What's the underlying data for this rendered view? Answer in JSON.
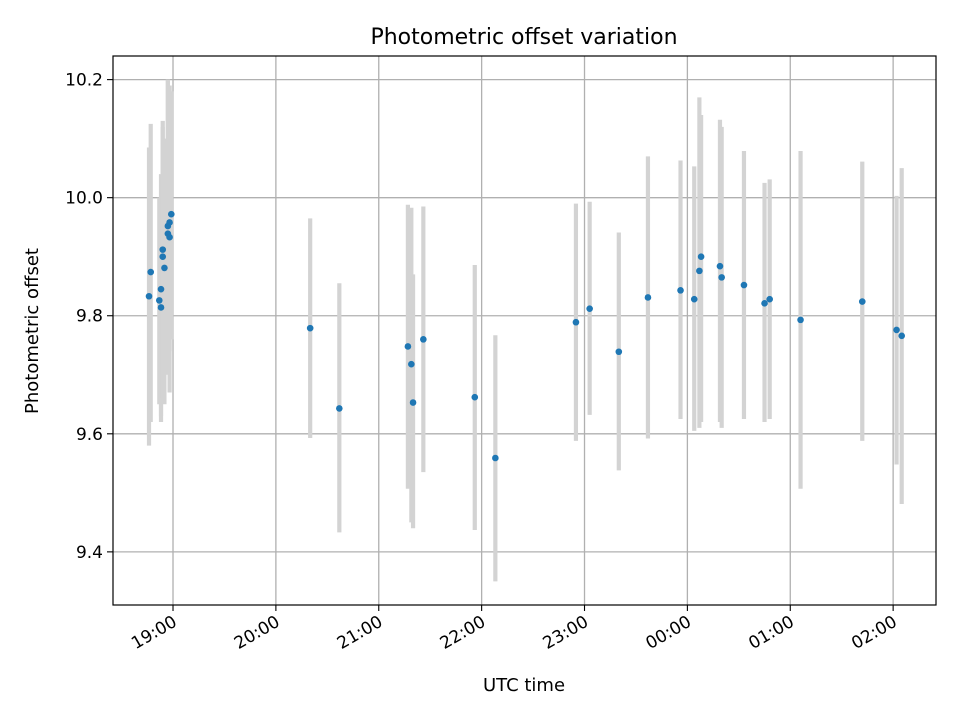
{
  "chart_data": {
    "type": "scatter",
    "title": "Photometric offset variation",
    "xlabel": "UTC time",
    "ylabel": "Photometric offset",
    "xlim": [
      "2000-01-01T18:25",
      "2000-01-02T02:25"
    ],
    "ylim": [
      9.31,
      10.24
    ],
    "x_ticks": [
      "19:00",
      "20:00",
      "21:00",
      "22:00",
      "23:00",
      "00:00",
      "01:00",
      "02:00"
    ],
    "y_ticks": [
      "9.4",
      "9.6",
      "9.8",
      "10.0",
      "10.2"
    ],
    "grid": true,
    "marker_color": "#1f77b4",
    "errorbar_color": "#d3d3d3",
    "series": [
      {
        "points": [
          {
            "t": "2000-01-01T18:46",
            "y": 9.833,
            "ylo": 9.58,
            "yhi": 10.085
          },
          {
            "t": "2000-01-01T18:47",
            "y": 9.874,
            "ylo": 9.62,
            "yhi": 10.125
          },
          {
            "t": "2000-01-01T18:52",
            "y": 9.826,
            "ylo": 9.65,
            "yhi": 10.0
          },
          {
            "t": "2000-01-01T18:53",
            "y": 9.814,
            "ylo": 9.63,
            "yhi": 10.0
          },
          {
            "t": "2000-01-01T18:53",
            "y": 9.845,
            "ylo": 9.62,
            "yhi": 10.04
          },
          {
            "t": "2000-01-01T18:54",
            "y": 9.912,
            "ylo": 9.68,
            "yhi": 10.13
          },
          {
            "t": "2000-01-01T18:54",
            "y": 9.9,
            "ylo": 9.66,
            "yhi": 10.12
          },
          {
            "t": "2000-01-01T18:55",
            "y": 9.881,
            "ylo": 9.65,
            "yhi": 10.1
          },
          {
            "t": "2000-01-01T18:57",
            "y": 9.939,
            "ylo": 9.7,
            "yhi": 10.2
          },
          {
            "t": "2000-01-01T18:57",
            "y": 9.952,
            "ylo": 9.72,
            "yhi": 10.2
          },
          {
            "t": "2000-01-01T18:58",
            "y": 9.933,
            "ylo": 9.67,
            "yhi": 10.19
          },
          {
            "t": "2000-01-01T18:58",
            "y": 9.958,
            "ylo": 9.74,
            "yhi": 10.19
          },
          {
            "t": "2000-01-01T18:59",
            "y": 9.972,
            "ylo": 9.76,
            "yhi": 10.18
          },
          {
            "t": "2000-01-01T20:20",
            "y": 9.779,
            "ylo": 9.593,
            "yhi": 9.965
          },
          {
            "t": "2000-01-01T20:37",
            "y": 9.643,
            "ylo": 9.433,
            "yhi": 9.855
          },
          {
            "t": "2000-01-01T21:17",
            "y": 9.748,
            "ylo": 9.507,
            "yhi": 9.988
          },
          {
            "t": "2000-01-01T21:19",
            "y": 9.718,
            "ylo": 9.45,
            "yhi": 9.983
          },
          {
            "t": "2000-01-01T21:20",
            "y": 9.653,
            "ylo": 9.44,
            "yhi": 9.87
          },
          {
            "t": "2000-01-01T21:26",
            "y": 9.76,
            "ylo": 9.535,
            "yhi": 9.985
          },
          {
            "t": "2000-01-01T21:56",
            "y": 9.662,
            "ylo": 9.437,
            "yhi": 9.886
          },
          {
            "t": "2000-01-01T22:08",
            "y": 9.559,
            "ylo": 9.35,
            "yhi": 9.767
          },
          {
            "t": "2000-01-01T22:55",
            "y": 9.789,
            "ylo": 9.588,
            "yhi": 9.99
          },
          {
            "t": "2000-01-01T23:03",
            "y": 9.812,
            "ylo": 9.632,
            "yhi": 9.993
          },
          {
            "t": "2000-01-01T23:20",
            "y": 9.739,
            "ylo": 9.538,
            "yhi": 9.941
          },
          {
            "t": "2000-01-01T23:37",
            "y": 9.831,
            "ylo": 9.592,
            "yhi": 10.07
          },
          {
            "t": "2000-01-01T23:56",
            "y": 9.843,
            "ylo": 9.625,
            "yhi": 10.063
          },
          {
            "t": "2000-01-02T00:04",
            "y": 9.828,
            "ylo": 9.605,
            "yhi": 10.053
          },
          {
            "t": "2000-01-02T00:07",
            "y": 9.876,
            "ylo": 9.61,
            "yhi": 10.17
          },
          {
            "t": "2000-01-02T00:08",
            "y": 9.9,
            "ylo": 9.62,
            "yhi": 10.14
          },
          {
            "t": "2000-01-02T00:19",
            "y": 9.884,
            "ylo": 9.62,
            "yhi": 10.132
          },
          {
            "t": "2000-01-02T00:20",
            "y": 9.865,
            "ylo": 9.61,
            "yhi": 10.12
          },
          {
            "t": "2000-01-02T00:33",
            "y": 9.852,
            "ylo": 9.625,
            "yhi": 10.079
          },
          {
            "t": "2000-01-02T00:45",
            "y": 9.821,
            "ylo": 9.62,
            "yhi": 10.025
          },
          {
            "t": "2000-01-02T00:48",
            "y": 9.828,
            "ylo": 9.625,
            "yhi": 10.031
          },
          {
            "t": "2000-01-02T01:06",
            "y": 9.793,
            "ylo": 9.507,
            "yhi": 10.079
          },
          {
            "t": "2000-01-02T01:42",
            "y": 9.824,
            "ylo": 9.588,
            "yhi": 10.061
          },
          {
            "t": "2000-01-02T02:02",
            "y": 9.776,
            "ylo": 9.548,
            "yhi": 10.003
          },
          {
            "t": "2000-01-02T02:05",
            "y": 9.766,
            "ylo": 9.481,
            "yhi": 10.05
          }
        ]
      }
    ]
  }
}
